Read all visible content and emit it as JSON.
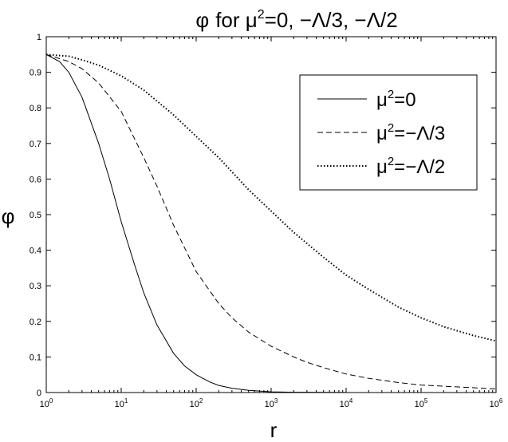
{
  "chart_data": {
    "type": "line",
    "title": {
      "phi": "φ",
      "text": "for μ",
      "sup": "2",
      "rest": "=0, −Λ/3, −Λ/2"
    },
    "xlabel": "r",
    "ylabel": "φ",
    "xscale": "log",
    "xlim": [
      1,
      1000000
    ],
    "ylim": [
      0,
      1
    ],
    "x_ticks": [
      {
        "base": "10",
        "exp": "0",
        "value": 1
      },
      {
        "base": "10",
        "exp": "1",
        "value": 10
      },
      {
        "base": "10",
        "exp": "2",
        "value": 100
      },
      {
        "base": "10",
        "exp": "3",
        "value": 1000
      },
      {
        "base": "10",
        "exp": "4",
        "value": 10000
      },
      {
        "base": "10",
        "exp": "5",
        "value": 100000
      },
      {
        "base": "10",
        "exp": "6",
        "value": 1000000
      }
    ],
    "y_ticks": [
      "0",
      "0.1",
      "0.2",
      "0.3",
      "0.4",
      "0.5",
      "0.6",
      "0.7",
      "0.8",
      "0.9",
      "1"
    ],
    "grid": false,
    "legend_position": "top-right",
    "series": [
      {
        "name": {
          "pre": "μ",
          "sup": "2",
          "post": "=0"
        },
        "style": "solid",
        "color": "#000000",
        "x": [
          1,
          1.5,
          2,
          3,
          5,
          7,
          10,
          15,
          20,
          30,
          50,
          70,
          100,
          150,
          200,
          300,
          500,
          1000,
          2000,
          5000,
          10000
        ],
        "y": [
          0.95,
          0.93,
          0.9,
          0.83,
          0.7,
          0.6,
          0.48,
          0.36,
          0.28,
          0.19,
          0.11,
          0.075,
          0.05,
          0.03,
          0.02,
          0.012,
          0.006,
          0.002,
          0.001,
          0.0005,
          0.0002
        ]
      },
      {
        "name": {
          "pre": "μ",
          "sup": "2",
          "post": "=−Λ/3"
        },
        "style": "dashed",
        "color": "#000000",
        "x": [
          1,
          2,
          3,
          5,
          10,
          20,
          30,
          50,
          100,
          200,
          300,
          500,
          1000,
          2000,
          3000,
          5000,
          10000,
          20000,
          50000,
          100000,
          1000000
        ],
        "y": [
          0.95,
          0.93,
          0.91,
          0.87,
          0.79,
          0.66,
          0.58,
          0.47,
          0.34,
          0.25,
          0.21,
          0.17,
          0.13,
          0.1,
          0.085,
          0.07,
          0.052,
          0.04,
          0.028,
          0.021,
          0.01
        ]
      },
      {
        "name": {
          "pre": "μ",
          "sup": "2",
          "post": "=−Λ/2"
        },
        "style": "dotted",
        "color": "#000000",
        "x": [
          1,
          2,
          3,
          5,
          10,
          20,
          50,
          100,
          200,
          500,
          1000,
          2000,
          5000,
          10000,
          20000,
          50000,
          100000,
          200000,
          500000,
          1000000
        ],
        "y": [
          0.95,
          0.945,
          0.935,
          0.92,
          0.89,
          0.85,
          0.78,
          0.72,
          0.66,
          0.57,
          0.51,
          0.45,
          0.38,
          0.33,
          0.29,
          0.24,
          0.21,
          0.185,
          0.16,
          0.145
        ]
      }
    ]
  }
}
